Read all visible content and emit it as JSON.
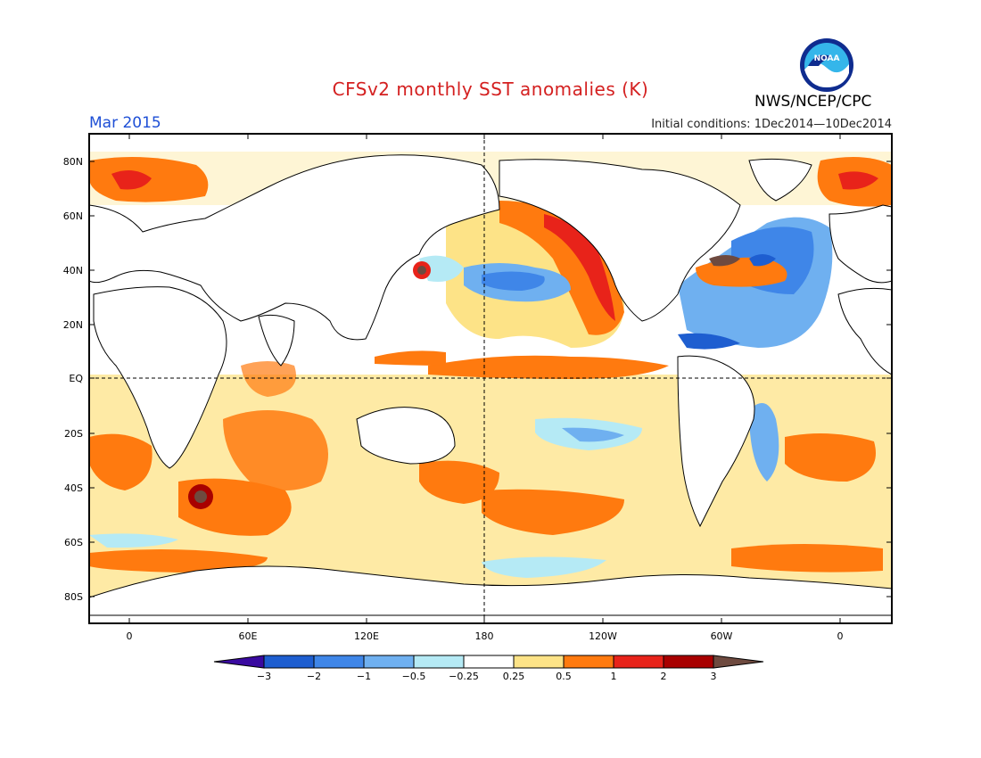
{
  "header": {
    "title": "CFSv2 monthly SST anomalies (K)",
    "month": "Mar 2015",
    "initial_conditions": "Initial conditions: 1Dec2014—10Dec2014",
    "org": "NWS/NCEP/CPC",
    "logo_text": "NOAA"
  },
  "colors": {
    "title": "#d42020",
    "month": "#1e4fd6",
    "levels": [
      "#3a0aa0",
      "#1e5ed0",
      "#3f86e8",
      "#6fb0f0",
      "#b5eaf5",
      "#ffffff",
      "#fde387",
      "#ff7a0f",
      "#e8231a",
      "#a80000",
      "#6e4a3f"
    ]
  },
  "axes": {
    "lat_labels": [
      "80N",
      "60N",
      "40N",
      "20N",
      "EQ",
      "20S",
      "40S",
      "60S",
      "80S"
    ],
    "lon_labels": [
      "0",
      "60E",
      "120E",
      "180",
      "120W",
      "60W",
      "0"
    ]
  },
  "colorbar": {
    "tick_labels": [
      "−3",
      "−2",
      "−1",
      "−0.5",
      "−0.25",
      "0.25",
      "0.5",
      "1",
      "2",
      "3"
    ]
  }
}
